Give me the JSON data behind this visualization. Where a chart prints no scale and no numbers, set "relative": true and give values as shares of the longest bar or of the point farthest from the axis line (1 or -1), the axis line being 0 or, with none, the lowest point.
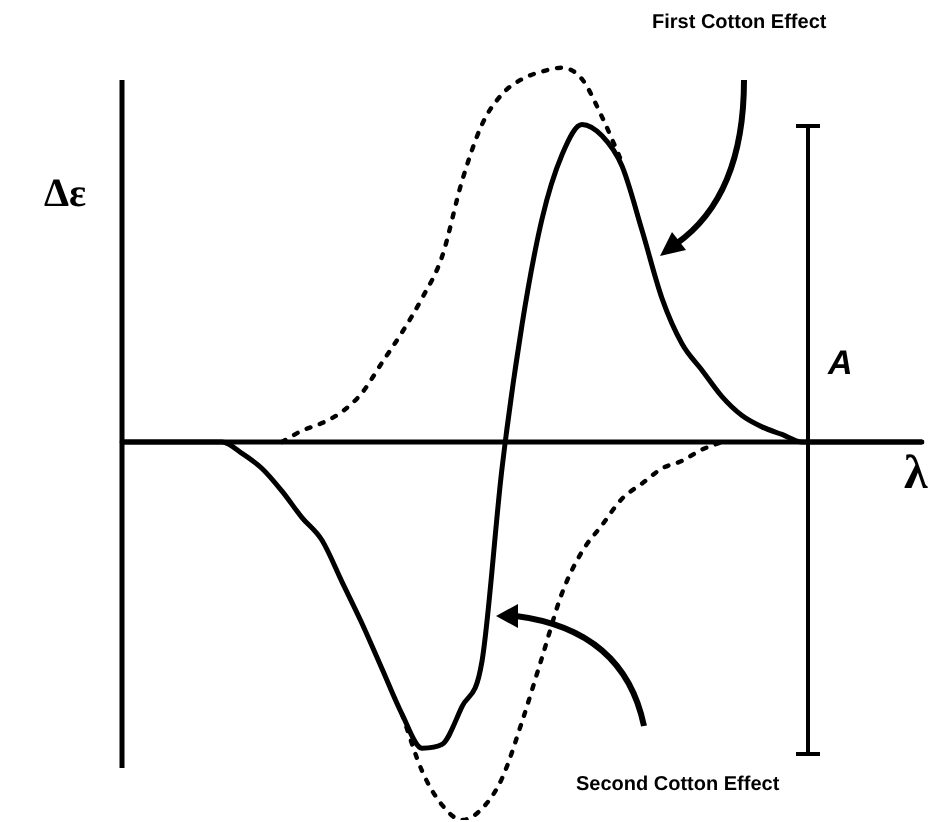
{
  "chart_data": {
    "type": "line",
    "relative": true,
    "xlabel": "λ",
    "ylabel": "Δε",
    "legend": false,
    "marker": "none",
    "annotations": [
      "First Cotton Effect",
      "Second Cotton Effect",
      "A"
    ],
    "categories": [
      null,
      null,
      null,
      null,
      null,
      null,
      null,
      null,
      null,
      null,
      null,
      null,
      null,
      null,
      null,
      null,
      null,
      null,
      null,
      null,
      null,
      null,
      null,
      null,
      null,
      null,
      null,
      null,
      null,
      null,
      null,
      null,
      null,
      null,
      null,
      null,
      null,
      null,
      null,
      null,
      null
    ],
    "series": [
      {
        "color": "#000000",
        "line_style": "solid",
        "values": [
          0,
          0,
          0,
          0,
          0,
          0,
          -0.03,
          -0.07,
          -0.13,
          -0.2,
          -0.26,
          -0.37,
          -0.48,
          -0.6,
          -0.72,
          -0.81,
          -0.8,
          -0.7,
          -0.58,
          -0.07,
          0.31,
          0.59,
          0.76,
          0.84,
          0.81,
          0.73,
          0.56,
          0.38,
          0.26,
          0.19,
          0.12,
          0.07,
          0.04,
          0.02,
          0,
          0,
          0,
          0,
          0,
          0,
          0
        ]
      },
      {
        "color": "#000000",
        "line_style": "dotted",
        "values": [
          null,
          null,
          null,
          null,
          null,
          null,
          null,
          null,
          0,
          0.03,
          0.05,
          0.08,
          0.13,
          0.21,
          0.29,
          0.38,
          0.49,
          0.69,
          0.84,
          0.92,
          0.96,
          0.98,
          0.99,
          0.96,
          0.86,
          0.74,
          null,
          null,
          null,
          null,
          null,
          null,
          null,
          null,
          null,
          null,
          null,
          null,
          null,
          null,
          null
        ]
      },
      {
        "color": "#000000",
        "line_style": "dotted",
        "values": [
          null,
          null,
          null,
          null,
          null,
          null,
          null,
          null,
          null,
          null,
          null,
          null,
          null,
          null,
          -0.72,
          -0.87,
          -0.96,
          -1,
          -0.97,
          -0.89,
          -0.74,
          -0.57,
          -0.4,
          -0.29,
          -0.22,
          -0.15,
          -0.11,
          -0.07,
          -0.05,
          -0.02,
          0,
          null,
          null,
          null,
          null,
          null,
          null,
          null,
          null,
          null,
          null
        ]
      }
    ]
  }
}
